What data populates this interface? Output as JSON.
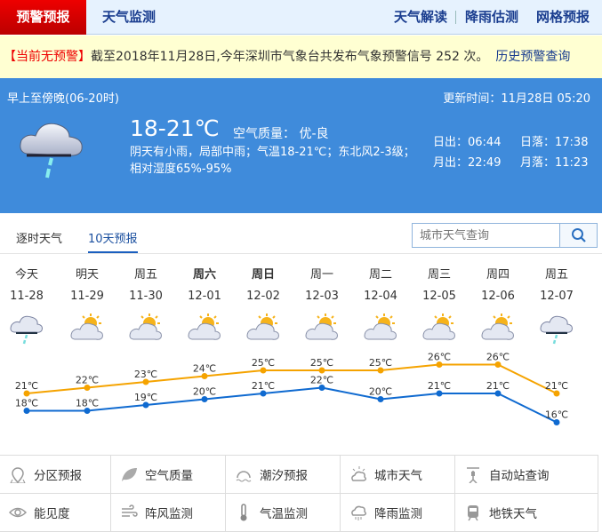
{
  "header": {
    "active_tab": "预警预报",
    "tab2": "天气监测",
    "links": [
      "天气解读",
      "降雨估测",
      "网格预报"
    ]
  },
  "warning": {
    "badge": "【当前无预警】",
    "text": "截至2018年11月28日,今年深圳市气象台共发布气象预警信号 252 次。",
    "history_link": "历史预警查询"
  },
  "current": {
    "period": "早上至傍晚(06-20时)",
    "updated": "更新时间：11月28日 05:20",
    "temp": "18-21℃",
    "air_quality": "空气质量： 优-良",
    "desc": "阴天有小雨，局部中雨；气温18-21℃；东北风2-3级；相对湿度65%-95%",
    "sunrise": "日出：06:44",
    "sunset": "日落：17:38",
    "moonrise": "月出：22:49",
    "moonset": "月落：11:23",
    "icon": "cloud-rain-icon"
  },
  "tabs": {
    "hourly": "逐时天气",
    "ten_day": "10天预报",
    "search_placeholder": "城市天气查询"
  },
  "colors": {
    "high": "#f5a300",
    "low": "#0f6ad0",
    "accent": "#3f8bdb"
  },
  "forecast": [
    {
      "day": "今天",
      "date": "11-28",
      "icon": "rain",
      "high": "21℃",
      "low": "18℃"
    },
    {
      "day": "明天",
      "date": "11-29",
      "icon": "partly-cloudy",
      "high": "22℃",
      "low": "18℃"
    },
    {
      "day": "周五",
      "date": "11-30",
      "icon": "partly-cloudy",
      "high": "23℃",
      "low": "19℃"
    },
    {
      "day": "周六",
      "date": "12-01",
      "icon": "partly-cloudy",
      "high": "24℃",
      "low": "20℃"
    },
    {
      "day": "周日",
      "date": "12-02",
      "icon": "partly-cloudy",
      "high": "25℃",
      "low": "21℃"
    },
    {
      "day": "周一",
      "date": "12-03",
      "icon": "partly-cloudy",
      "high": "25℃",
      "low": "22℃"
    },
    {
      "day": "周二",
      "date": "12-04",
      "icon": "partly-cloudy",
      "high": "25℃",
      "low": "20℃"
    },
    {
      "day": "周三",
      "date": "12-05",
      "icon": "partly-cloudy",
      "high": "26℃",
      "low": "21℃"
    },
    {
      "day": "周四",
      "date": "12-06",
      "icon": "partly-cloudy",
      "high": "26℃",
      "low": "21℃"
    },
    {
      "day": "周五",
      "date": "12-07",
      "icon": "rain",
      "high": "21℃",
      "low": "16℃"
    }
  ],
  "chart_data": {
    "type": "line",
    "categories": [
      "11-28",
      "11-29",
      "11-30",
      "12-01",
      "12-02",
      "12-03",
      "12-04",
      "12-05",
      "12-06",
      "12-07"
    ],
    "series": [
      {
        "values": [
          21,
          22,
          23,
          24,
          25,
          25,
          25,
          26,
          26,
          21
        ]
      },
      {
        "values": [
          18,
          18,
          19,
          20,
          21,
          22,
          20,
          21,
          21,
          16
        ]
      }
    ]
  },
  "services": [
    {
      "label": "分区预报",
      "icon": "map-pin-icon"
    },
    {
      "label": "空气质量",
      "icon": "leaf-icon"
    },
    {
      "label": "潮汐预报",
      "icon": "tide-icon"
    },
    {
      "label": "城市天气",
      "icon": "city-weather-icon"
    },
    {
      "label": "自动站查询",
      "icon": "station-icon"
    },
    {
      "label": "能见度",
      "icon": "eye-icon"
    },
    {
      "label": "阵风监测",
      "icon": "wind-icon"
    },
    {
      "label": "气温监测",
      "icon": "thermometer-icon"
    },
    {
      "label": "降雨监测",
      "icon": "rain-cloud-icon"
    },
    {
      "label": "地铁天气",
      "icon": "train-icon"
    }
  ]
}
